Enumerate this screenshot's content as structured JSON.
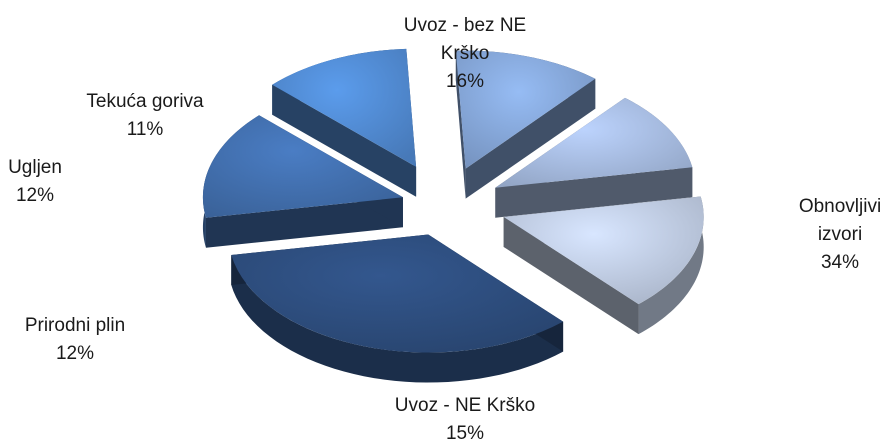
{
  "chart_data": {
    "type": "pie",
    "title": "",
    "slices": [
      {
        "label": "Uvoz - bez NE Krško",
        "label_lines": [
          "Uvoz - bez NE",
          "Krško"
        ],
        "value": 16,
        "percent_label": "16%",
        "color": "#b7c3d8"
      },
      {
        "label": "Obnovljivi izvori",
        "label_lines": [
          "Obnovljivi",
          "izvori"
        ],
        "value": 34,
        "percent_label": "34%",
        "color": "#2b4a78"
      },
      {
        "label": "Uvoz - NE Krško",
        "label_lines": [
          "Uvoz - NE Krško"
        ],
        "value": 15,
        "percent_label": "15%",
        "color": "#3f6aa6"
      },
      {
        "label": "Prirodni plin",
        "label_lines": [
          "Prirodni plin"
        ],
        "value": 12,
        "percent_label": "12%",
        "color": "#4d84c8"
      },
      {
        "label": "Ugljen",
        "label_lines": [
          "Ugljen"
        ],
        "value": 12,
        "percent_label": "12%",
        "color": "#7f9fcf"
      },
      {
        "label": "Tekuća goriva",
        "label_lines": [
          "Tekuća goriva"
        ],
        "value": 11,
        "percent_label": "11%",
        "color": "#9fb3d6"
      }
    ],
    "legend": "none",
    "style": "3d-exploded"
  }
}
